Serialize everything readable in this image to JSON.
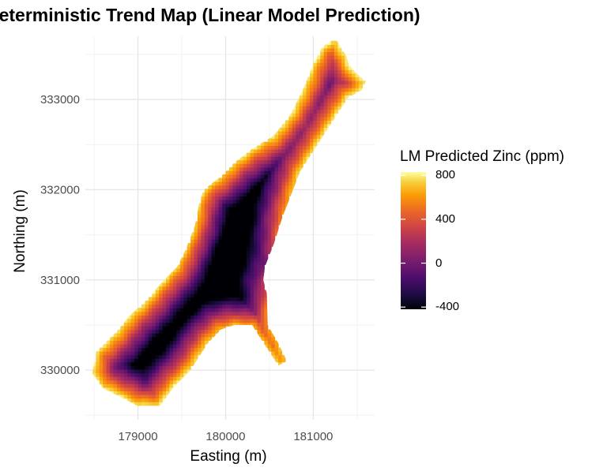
{
  "chart_data": {
    "type": "heatmap",
    "title": "Deterministic Trend Map (Linear Model Prediction)",
    "xlabel": "Easting (m)",
    "ylabel": "Northing (m)",
    "xlim": [
      178400,
      181700
    ],
    "ylim": [
      329450,
      333700
    ],
    "x_ticks": [
      179000,
      180000,
      181000
    ],
    "y_ticks": [
      330000,
      331000,
      332000,
      333000
    ],
    "x_tick_labels": [
      "179000",
      "180000",
      "181000"
    ],
    "y_tick_labels": [
      "330000",
      "331000",
      "332000",
      "333000"
    ],
    "grid": true,
    "colormap": "inferno",
    "value_range": [
      -420,
      830
    ],
    "legend": {
      "title": "LM Predicted Zinc (ppm)",
      "placement": "right",
      "ticks": [
        800,
        400,
        0,
        -400
      ],
      "tick_labels": [
        "800",
        "400",
        "0",
        "-400"
      ]
    },
    "region_boundary": [
      [
        178480,
        329960
      ],
      [
        178520,
        330200
      ],
      [
        178750,
        330420
      ],
      [
        178900,
        330600
      ],
      [
        179100,
        330780
      ],
      [
        179250,
        330950
      ],
      [
        179450,
        331150
      ],
      [
        179550,
        331350
      ],
      [
        179650,
        331600
      ],
      [
        179700,
        331850
      ],
      [
        179750,
        332000
      ],
      [
        179950,
        332150
      ],
      [
        180100,
        332300
      ],
      [
        180300,
        332450
      ],
      [
        180550,
        332600
      ],
      [
        180750,
        332850
      ],
      [
        180900,
        333150
      ],
      [
        181000,
        333400
      ],
      [
        181100,
        333580
      ],
      [
        181250,
        333680
      ],
      [
        181380,
        333480
      ],
      [
        181400,
        333400
      ],
      [
        181480,
        333300
      ],
      [
        181600,
        333200
      ],
      [
        181550,
        333100
      ],
      [
        181400,
        333020
      ],
      [
        181250,
        332800
      ],
      [
        181050,
        332500
      ],
      [
        180850,
        332200
      ],
      [
        180750,
        331950
      ],
      [
        180650,
        331700
      ],
      [
        180550,
        331400
      ],
      [
        180450,
        331150
      ],
      [
        180430,
        331000
      ],
      [
        180470,
        330850
      ],
      [
        180480,
        330500
      ],
      [
        180600,
        330300
      ],
      [
        180700,
        330100
      ],
      [
        180600,
        330050
      ],
      [
        180500,
        330200
      ],
      [
        180400,
        330350
      ],
      [
        180300,
        330500
      ],
      [
        180100,
        330500
      ],
      [
        179950,
        330450
      ],
      [
        179800,
        330300
      ],
      [
        179600,
        330000
      ],
      [
        179400,
        329800
      ],
      [
        179250,
        329600
      ],
      [
        179000,
        329600
      ],
      [
        178800,
        329700
      ],
      [
        178600,
        329800
      ]
    ],
    "trend_model": {
      "description_unit": "ppm",
      "peak_high": 830,
      "low_center": [
        180500,
        331150
      ],
      "low_value": -420
    }
  }
}
